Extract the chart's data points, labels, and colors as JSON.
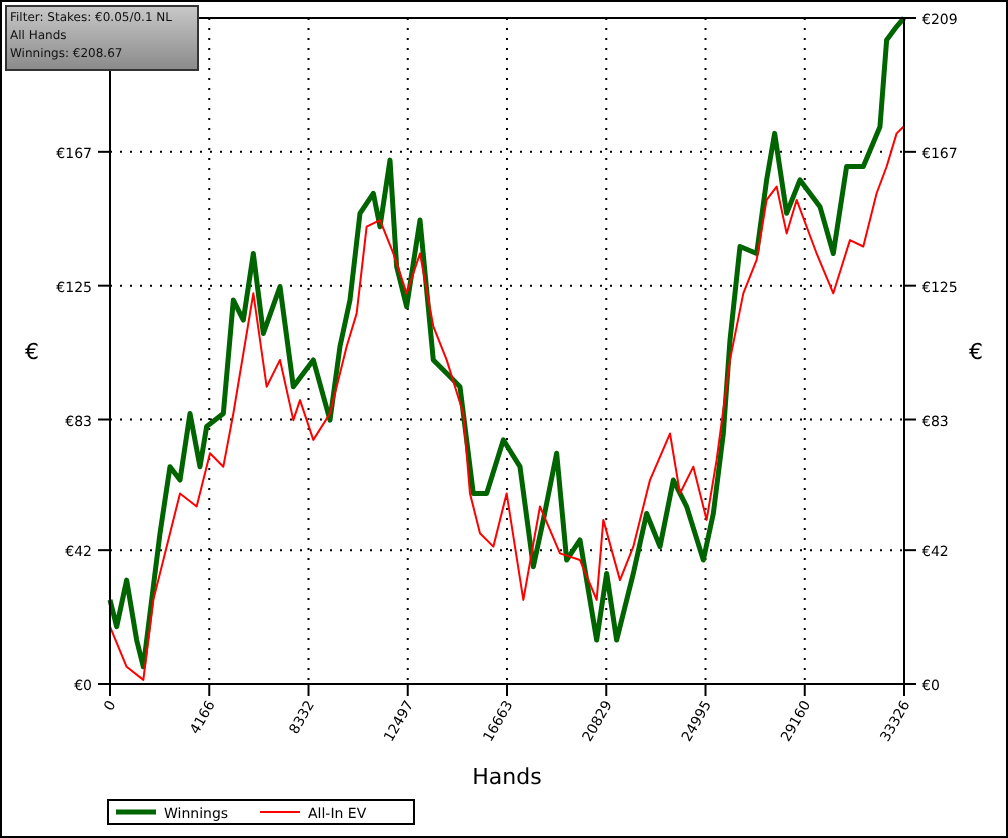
{
  "chart_data": {
    "type": "line",
    "xlabel": "Hands",
    "ylabel": "€",
    "y2label": "€",
    "annotations": [
      "Filter: Stakes: €0.05/0.1 NL",
      "All Hands",
      "Winnings: €208.67"
    ],
    "xlim": [
      0,
      33326
    ],
    "xticks": [
      0,
      4166,
      8332,
      12497,
      16663,
      20829,
      24995,
      29160,
      33326
    ],
    "ylim": [
      0,
      209
    ],
    "yticks": [
      {
        "value": 0,
        "label": "€0"
      },
      {
        "value": 42,
        "label": "€42"
      },
      {
        "value": 83,
        "label": "€83"
      },
      {
        "value": 125,
        "label": "€125"
      },
      {
        "value": 167,
        "label": "€167"
      }
    ],
    "y2lim": [
      0,
      209
    ],
    "y2ticks": [
      {
        "value": 0,
        "label": "€0"
      },
      {
        "value": 42,
        "label": "€42"
      },
      {
        "value": 83,
        "label": "€83"
      },
      {
        "value": 125,
        "label": "€125"
      },
      {
        "value": 167,
        "label": "€167"
      },
      {
        "value": 209,
        "label": "€209"
      }
    ],
    "grid": true,
    "legend": "bottom left",
    "marker": "none",
    "series": [
      {
        "name": "Winnings",
        "color": "#006400",
        "x": [
          0,
          280,
          699,
          1119,
          1399,
          1679,
          2099,
          2518,
          2938,
          3358,
          3777,
          4057,
          4757,
          5177,
          5596,
          6016,
          6436,
          7135,
          7695,
          8534,
          9233,
          9653,
          10073,
          10493,
          11052,
          11332,
          11752,
          12031,
          12451,
          13011,
          13570,
          14130,
          14690,
          15249,
          15809,
          16509,
          17208,
          17768,
          18188,
          18747,
          19167,
          19726,
          20426,
          20845,
          21265,
          21965,
          22524,
          23084,
          23644,
          24203,
          24903,
          25323,
          25742,
          26022,
          26442,
          27141,
          27561,
          27897,
          28400,
          28960,
          29799,
          30359,
          30918,
          31618,
          32317,
          32597,
          33016,
          33326
        ],
        "values": [
          26.4,
          18.0,
          32.6,
          13.8,
          5.4,
          22.2,
          47.3,
          68.2,
          64.0,
          84.9,
          68.2,
          80.8,
          84.9,
          120.5,
          114.2,
          135.1,
          110.0,
          124.7,
          93.3,
          101.7,
          82.8,
          105.9,
          120.5,
          147.7,
          154.0,
          143.5,
          164.4,
          131.0,
          118.4,
          145.6,
          101.7,
          97.5,
          93.3,
          59.8,
          59.8,
          76.6,
          68.2,
          36.8,
          51.5,
          72.4,
          38.9,
          45.2,
          13.8,
          34.7,
          13.8,
          34.7,
          53.5,
          43.1,
          64.0,
          55.7,
          38.9,
          53.5,
          78.6,
          107.9,
          137.3,
          135.1,
          158.2,
          172.8,
          147.7,
          158.2,
          149.8,
          135.1,
          162.4,
          162.4,
          174.9,
          202.1,
          206.3,
          209
        ]
      },
      {
        "name": "All-In EV",
        "color": "#ff0000",
        "x": [
          0,
          699,
          1399,
          1819,
          2378,
          2938,
          3637,
          4197,
          4757,
          5177,
          5736,
          6016,
          6575,
          7135,
          7695,
          7975,
          8534,
          9233,
          9933,
          10353,
          10772,
          11332,
          11892,
          12451,
          13011,
          13570,
          14130,
          14830,
          15109,
          15529,
          16089,
          16648,
          17348,
          18047,
          18887,
          19726,
          20426,
          20706,
          21405,
          21965,
          22664,
          23504,
          23923,
          24483,
          25042,
          25462,
          26022,
          26582,
          27141,
          27561,
          27980,
          28400,
          28820,
          29659,
          30359,
          31058,
          31618,
          32177,
          32597,
          33016,
          33326
        ],
        "values": [
          18.0,
          5.4,
          1.3,
          26.4,
          43.1,
          59.8,
          55.7,
          72.4,
          68.2,
          84.9,
          110.0,
          122.6,
          93.3,
          101.7,
          82.8,
          89.1,
          76.6,
          84.9,
          105.9,
          116.3,
          143.5,
          145.6,
          135.1,
          122.6,
          135.1,
          112.2,
          101.7,
          84.9,
          59.8,
          47.3,
          43.1,
          59.8,
          26.4,
          55.7,
          41.0,
          38.9,
          26.4,
          51.5,
          32.6,
          43.1,
          64.0,
          78.6,
          59.8,
          68.2,
          51.5,
          70.3,
          101.7,
          122.6,
          133.1,
          151.9,
          156.1,
          141.4,
          151.9,
          135.1,
          122.6,
          139.3,
          137.3,
          154.0,
          162.4,
          172.8,
          175.0
        ]
      }
    ]
  }
}
